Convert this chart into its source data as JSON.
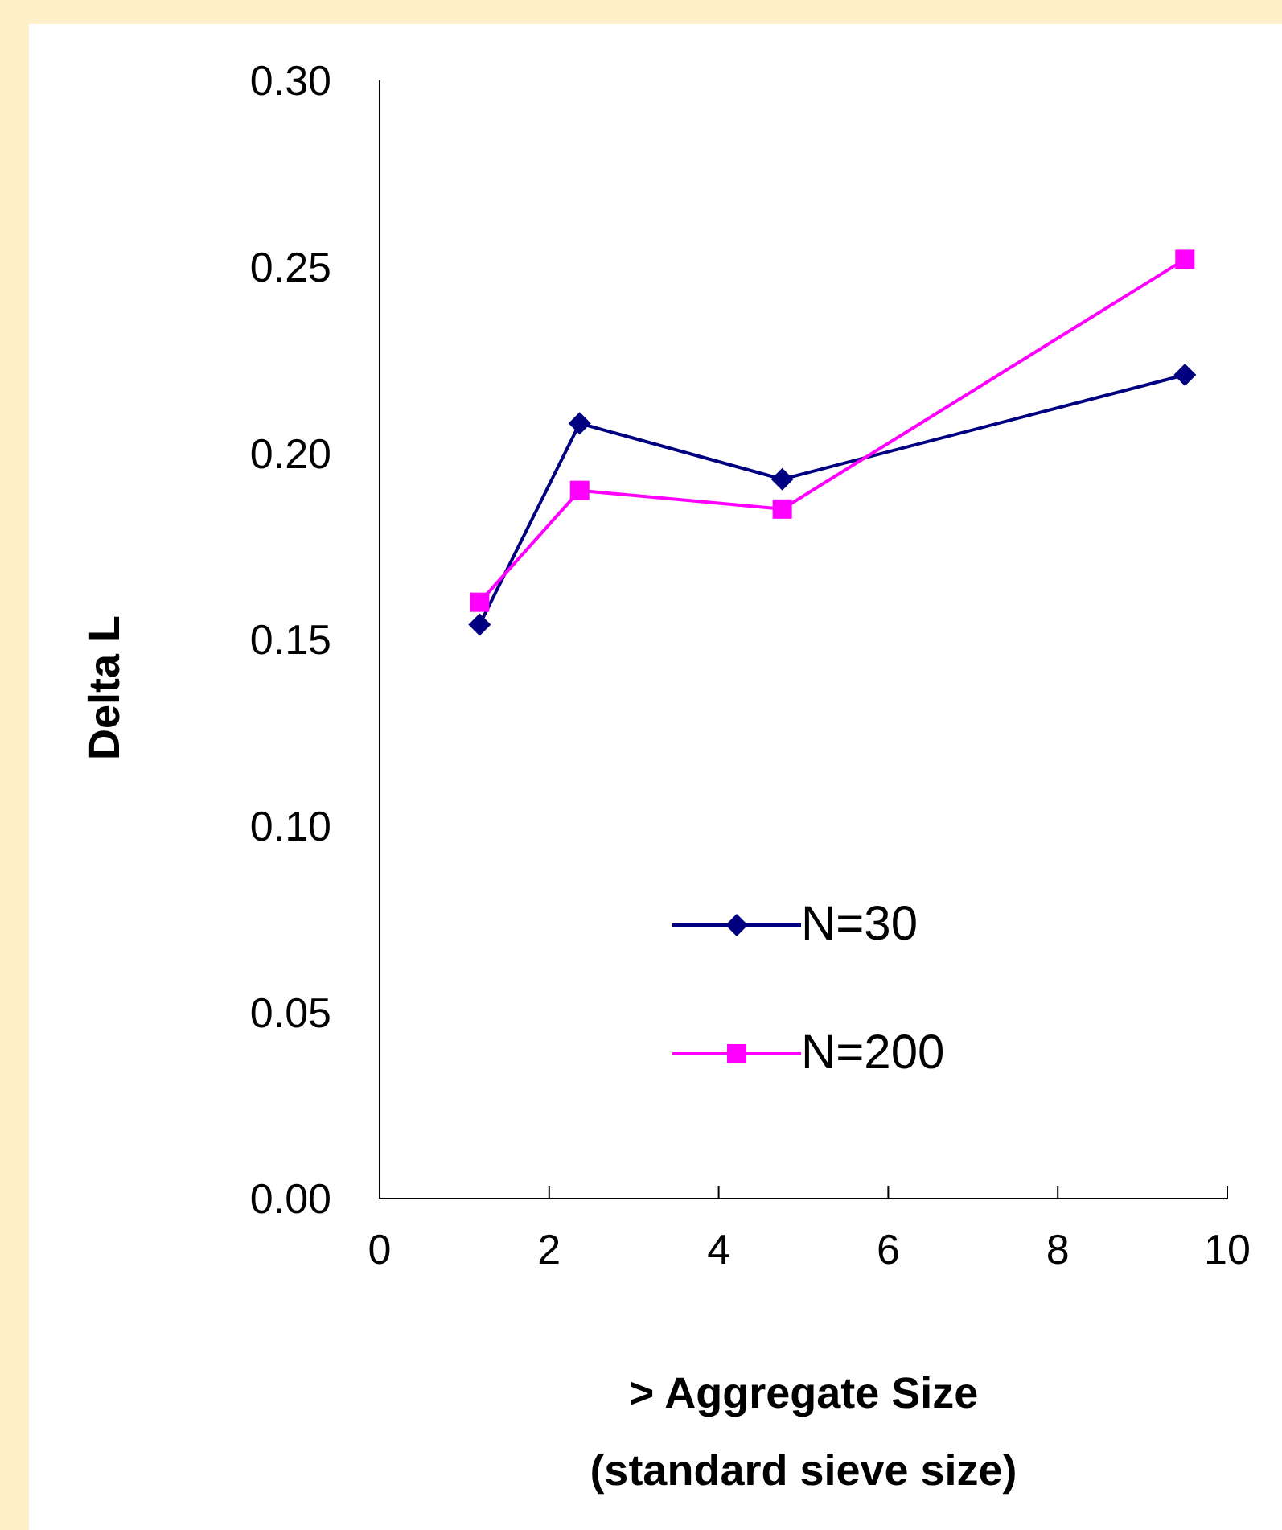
{
  "chart_data": {
    "type": "line",
    "xlabel": "> Aggregate Size\n(standard sieve size)",
    "ylabel": "Delta L",
    "xlim": [
      0,
      10
    ],
    "xticks": [
      0,
      2,
      4,
      6,
      8,
      10
    ],
    "ylim": [
      0,
      0.3
    ],
    "yticks": [
      {
        "value": 0,
        "label": "0.00"
      },
      {
        "value": 0.05,
        "label": "0.05"
      },
      {
        "value": 0.1,
        "label": "0.10"
      },
      {
        "value": 0.15,
        "label": "0.15"
      },
      {
        "value": 0.2,
        "label": "0.20"
      },
      {
        "value": 0.25,
        "label": "0.25"
      },
      {
        "value": 0.3,
        "label": "0.30"
      }
    ],
    "x": [
      1.18,
      2.36,
      4.75,
      9.5
    ],
    "grid": false,
    "legend": "right",
    "series": [
      {
        "name": "N=30",
        "color": "#000080",
        "marker": "diamond",
        "values": [
          0.154,
          0.208,
          0.193,
          0.221
        ]
      },
      {
        "name": "N=200",
        "color": "#ff00ff",
        "marker": "square",
        "values": [
          0.16,
          0.19,
          0.185,
          0.252
        ]
      }
    ]
  }
}
